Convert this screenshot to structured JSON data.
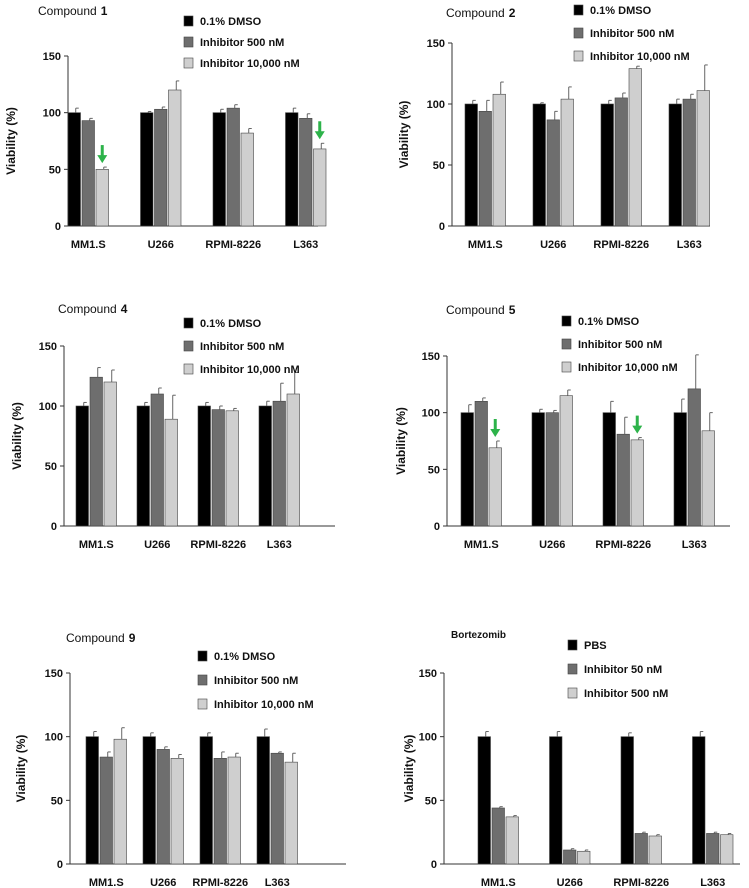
{
  "chart_data": [
    {
      "type": "bar",
      "title": "Compound",
      "title_number": "1",
      "ylabel": "Viability (%)",
      "xlabel": "",
      "ylim": [
        0,
        150
      ],
      "yticks": [
        "0",
        "50",
        "100",
        "150"
      ],
      "categories": [
        "MM1.S",
        "U266",
        "RPMI-8226",
        "L363"
      ],
      "series": [
        {
          "name": "0.1% DMSO",
          "color": "#000000",
          "values": [
            100,
            100,
            100,
            100
          ],
          "errors": [
            4,
            1,
            3,
            4
          ]
        },
        {
          "name": "Inhibitor 500 nM",
          "color": "#6e6e6e",
          "values": [
            93,
            103,
            104,
            95
          ],
          "errors": [
            2,
            2,
            3,
            4
          ]
        },
        {
          "name": "Inhibitor 10,000 nM",
          "color": "#cfcfcf",
          "values": [
            50,
            120,
            82,
            68
          ],
          "errors": [
            2,
            8,
            4,
            5
          ]
        }
      ],
      "arrows": [
        "MM1.S",
        "L363"
      ],
      "arrow_color": "#2db34a"
    },
    {
      "type": "bar",
      "title": "Compound",
      "title_number": "2",
      "ylabel": "Viability (%)",
      "xlabel": "",
      "ylim": [
        0,
        150
      ],
      "yticks": [
        "0",
        "50",
        "100",
        "150"
      ],
      "categories": [
        "MM1.S",
        "U266",
        "RPMI-8226",
        "L363"
      ],
      "series": [
        {
          "name": "0.1% DMSO",
          "color": "#000000",
          "values": [
            100,
            100,
            100,
            100
          ],
          "errors": [
            3,
            1,
            3,
            4
          ]
        },
        {
          "name": "Inhibitor 500 nM",
          "color": "#6e6e6e",
          "values": [
            94,
            87,
            105,
            104
          ],
          "errors": [
            9,
            7,
            4,
            4
          ]
        },
        {
          "name": "Inhibitor 10,000 nM",
          "color": "#cfcfcf",
          "values": [
            108,
            104,
            129,
            111
          ],
          "errors": [
            10,
            10,
            2,
            21
          ]
        }
      ],
      "arrows": [],
      "arrow_color": "#2db34a"
    },
    {
      "type": "bar",
      "title": "Compound",
      "title_number": "4",
      "ylabel": "Viability (%)",
      "xlabel": "",
      "ylim": [
        0,
        150
      ],
      "yticks": [
        "0",
        "50",
        "100",
        "150"
      ],
      "categories": [
        "MM1.S",
        "U266",
        "RPMI-8226",
        "L363"
      ],
      "series": [
        {
          "name": "0.1% DMSO",
          "color": "#000000",
          "values": [
            100,
            100,
            100,
            100
          ],
          "errors": [
            3,
            3,
            3,
            4
          ]
        },
        {
          "name": "Inhibitor 500 nM",
          "color": "#6e6e6e",
          "values": [
            124,
            110,
            97,
            104
          ],
          "errors": [
            8,
            5,
            3,
            15
          ]
        },
        {
          "name": "Inhibitor 10,000 nM",
          "color": "#cfcfcf",
          "values": [
            120,
            89,
            96,
            110
          ],
          "errors": [
            10,
            20,
            2,
            18
          ]
        }
      ],
      "arrows": [],
      "arrow_color": "#2db34a"
    },
    {
      "type": "bar",
      "title": "Compound",
      "title_number": "5",
      "ylabel": "Viability (%)",
      "xlabel": "",
      "ylim": [
        0,
        150
      ],
      "yticks": [
        "0",
        "50",
        "100",
        "150"
      ],
      "categories": [
        "MM1.S",
        "U266",
        "RPMI-8226",
        "L363"
      ],
      "series": [
        {
          "name": "0.1% DMSO",
          "color": "#000000",
          "values": [
            100,
            100,
            100,
            100
          ],
          "errors": [
            7,
            3,
            10,
            12
          ]
        },
        {
          "name": "Inhibitor 500 nM",
          "color": "#6e6e6e",
          "values": [
            110,
            100,
            81,
            121
          ],
          "errors": [
            3,
            2,
            15,
            30
          ]
        },
        {
          "name": "Inhibitor 10,000 nM",
          "color": "#cfcfcf",
          "values": [
            69,
            115,
            76,
            84
          ],
          "errors": [
            6,
            5,
            2,
            16
          ]
        }
      ],
      "arrows": [
        "MM1.S",
        "RPMI-8226"
      ],
      "arrow_color": "#2db34a"
    },
    {
      "type": "bar",
      "title": "Compound",
      "title_number": "9",
      "ylabel": "Viability (%)",
      "xlabel": "",
      "ylim": [
        0,
        150
      ],
      "yticks": [
        "0",
        "50",
        "100",
        "150"
      ],
      "categories": [
        "MM1.S",
        "U266",
        "RPMI-8226",
        "L363"
      ],
      "series": [
        {
          "name": "0.1% DMSO",
          "color": "#000000",
          "values": [
            100,
            100,
            100,
            100
          ],
          "errors": [
            4,
            3,
            3,
            6
          ]
        },
        {
          "name": "Inhibitor 500 nM",
          "color": "#6e6e6e",
          "values": [
            84,
            90,
            83,
            87
          ],
          "errors": [
            4,
            2,
            5,
            1
          ]
        },
        {
          "name": "Inhibitor 10,000 nM",
          "color": "#cfcfcf",
          "values": [
            98,
            83,
            84,
            80
          ],
          "errors": [
            9,
            3,
            3,
            7
          ]
        }
      ],
      "arrows": [],
      "arrow_color": "#2db34a"
    },
    {
      "type": "bar",
      "title": "Bortezomib",
      "title_number": "",
      "ylabel": "Viability (%)",
      "xlabel": "",
      "ylim": [
        0,
        150
      ],
      "yticks": [
        "0",
        "50",
        "100",
        "150"
      ],
      "categories": [
        "MM1.S",
        "U266",
        "RPMI-8226",
        "L363"
      ],
      "series": [
        {
          "name": "PBS",
          "color": "#000000",
          "values": [
            100,
            100,
            100,
            100
          ],
          "errors": [
            4,
            4,
            3,
            4
          ]
        },
        {
          "name": "Inhibitor 50 nM",
          "color": "#6e6e6e",
          "values": [
            44,
            11,
            24,
            24
          ],
          "errors": [
            1,
            1,
            1,
            1
          ]
        },
        {
          "name": "Inhibitor 500 nM",
          "color": "#cfcfcf",
          "values": [
            37,
            10,
            22,
            23
          ],
          "errors": [
            1,
            1,
            1,
            1
          ]
        }
      ],
      "arrows": [],
      "arrow_color": "#2db34a"
    }
  ]
}
